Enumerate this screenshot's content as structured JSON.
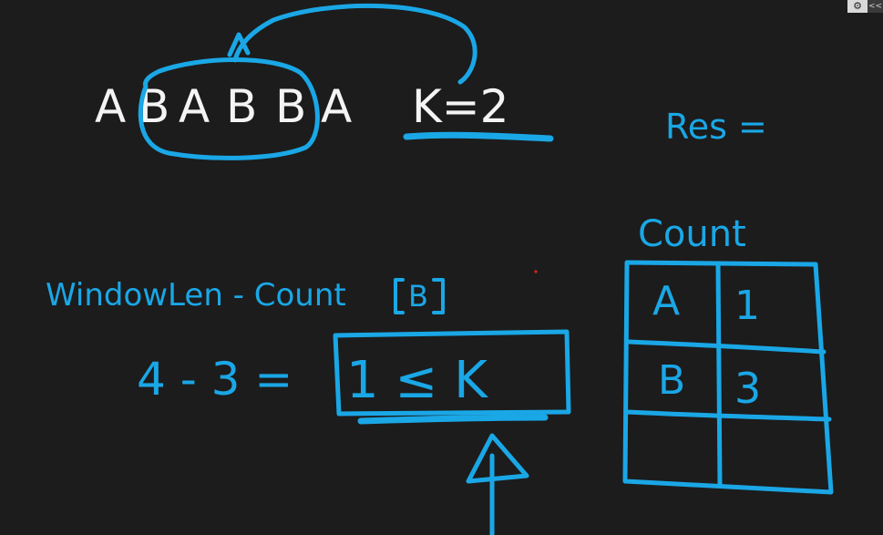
{
  "colors": {
    "background": "#1c1c1c",
    "chalk_white": "#f4f4f4",
    "marker_blue": "#1aa7e6"
  },
  "top": {
    "string_letters": [
      "A",
      "B",
      "A",
      "B",
      "B",
      "A"
    ],
    "k_label": "K=2"
  },
  "res_label": "Res =",
  "formula": {
    "label": "WindowLen - Count",
    "bracket_value": "B",
    "calc_prefix": "4 - 3 =",
    "boxed_result": "1 ≤ K"
  },
  "count_table": {
    "title": "Count",
    "rows": [
      {
        "key": "A",
        "value": "1"
      },
      {
        "key": "B",
        "value": "3"
      },
      {
        "key": "",
        "value": ""
      }
    ]
  },
  "controls": {
    "settings_icon": "gear-icon",
    "settings_glyph": "⚙",
    "collapse_glyph": "<<"
  }
}
